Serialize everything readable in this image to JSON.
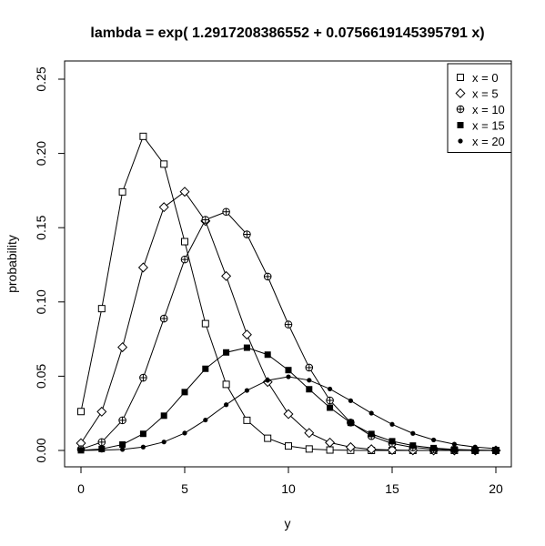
{
  "chart_data": {
    "type": "line",
    "title": "lambda = exp( 1.2917208386552 + 0.0756619145395791 x)",
    "xlabel": "y",
    "ylabel": "probability",
    "xlim": [
      0,
      20
    ],
    "ylim": [
      0,
      0.25
    ],
    "x_ticks": [
      "0",
      "5",
      "10",
      "15",
      "20"
    ],
    "y_ticks": [
      "0.00",
      "0.05",
      "0.10",
      "0.15",
      "0.20",
      "0.25"
    ],
    "grid": false,
    "legend_position": "top-right",
    "x": [
      0,
      1,
      2,
      3,
      4,
      5,
      6,
      7,
      8,
      9,
      10,
      11,
      12,
      13,
      14,
      15,
      16,
      17,
      18,
      19,
      20
    ],
    "series": [
      {
        "name": "x = 0",
        "marker": "open-square",
        "values": [
          0.0262,
          0.0955,
          0.1741,
          0.2115,
          0.1928,
          0.1406,
          0.0854,
          0.0445,
          0.0203,
          0.0082,
          0.003,
          0.001,
          0.0003,
          0.0001,
          0.0,
          0.0,
          0.0,
          0.0,
          0.0,
          0.0,
          0.0
        ]
      },
      {
        "name": "x = 5",
        "marker": "open-diamond",
        "values": [
          0.0049,
          0.0261,
          0.0695,
          0.1232,
          0.1638,
          0.1742,
          0.1545,
          0.1174,
          0.078,
          0.0461,
          0.0245,
          0.0118,
          0.0053,
          0.0022,
          0.0008,
          0.0003,
          0.0001,
          0.0,
          0.0,
          0.0,
          0.0
        ]
      },
      {
        "name": "x = 10",
        "marker": "circle-plus",
        "values": [
          0.0008,
          0.0056,
          0.0203,
          0.049,
          0.0888,
          0.1286,
          0.1553,
          0.1607,
          0.1455,
          0.1171,
          0.0848,
          0.0558,
          0.0337,
          0.0188,
          0.0097,
          0.0047,
          0.0021,
          0.0009,
          0.0004,
          0.0001,
          0.0001
        ]
      },
      {
        "name": "x = 15",
        "marker": "filled-square",
        "values": [
          0.0001,
          0.001,
          0.004,
          0.0112,
          0.0234,
          0.0393,
          0.055,
          0.066,
          0.0692,
          0.0645,
          0.0541,
          0.0412,
          0.0288,
          0.0186,
          0.0111,
          0.0062,
          0.0033,
          0.0016,
          0.0007,
          0.0003,
          0.0001
        ]
      },
      {
        "name": "x = 20",
        "marker": "filled-circle",
        "values": [
          0.0,
          0.0002,
          0.0007,
          0.0023,
          0.0057,
          0.0117,
          0.0205,
          0.0308,
          0.0404,
          0.0472,
          0.0496,
          0.0473,
          0.0414,
          0.0335,
          0.0251,
          0.0176,
          0.0115,
          0.0071,
          0.0042,
          0.0023,
          0.0012
        ]
      }
    ]
  }
}
